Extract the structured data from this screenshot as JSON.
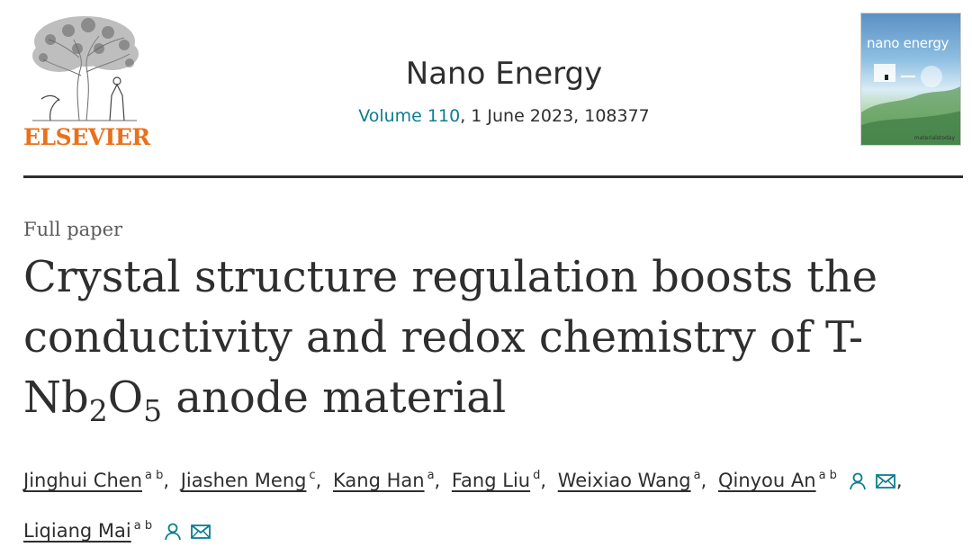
{
  "header": {
    "publisher": "ELSEVIER",
    "journal": "Nano Energy",
    "volume": "Volume 110",
    "issue_rest": ", 1 June 2023, 108377",
    "cover": {
      "title": "nano energy",
      "footer": "materialstoday"
    }
  },
  "article": {
    "type": "Full paper",
    "title_part1": "Crystal structure regulation boosts the conductivity and redox chemistry of T-Nb",
    "title_sub1": "2",
    "title_part2": "O",
    "title_sub2": "5",
    "title_part3": " anode material"
  },
  "authors": [
    {
      "name": "Jinghui Chen",
      "aff": "a b",
      "icons": false
    },
    {
      "name": "Jiashen Meng",
      "aff": "c",
      "icons": false
    },
    {
      "name": "Kang Han",
      "aff": "a",
      "icons": false
    },
    {
      "name": "Fang Liu",
      "aff": "d",
      "icons": false
    },
    {
      "name": "Weixiao Wang",
      "aff": "a",
      "icons": false
    },
    {
      "name": "Qinyou An",
      "aff": "a b",
      "icons": true
    },
    {
      "name": "Liqiang Mai",
      "aff": "a b",
      "icons": true
    }
  ],
  "colors": {
    "accent": "#0c7d91",
    "publisher": "#e9711c",
    "text": "#2e2e2e",
    "muted": "#5b5b5b"
  },
  "icon_names": [
    "person-icon",
    "envelope-icon"
  ]
}
